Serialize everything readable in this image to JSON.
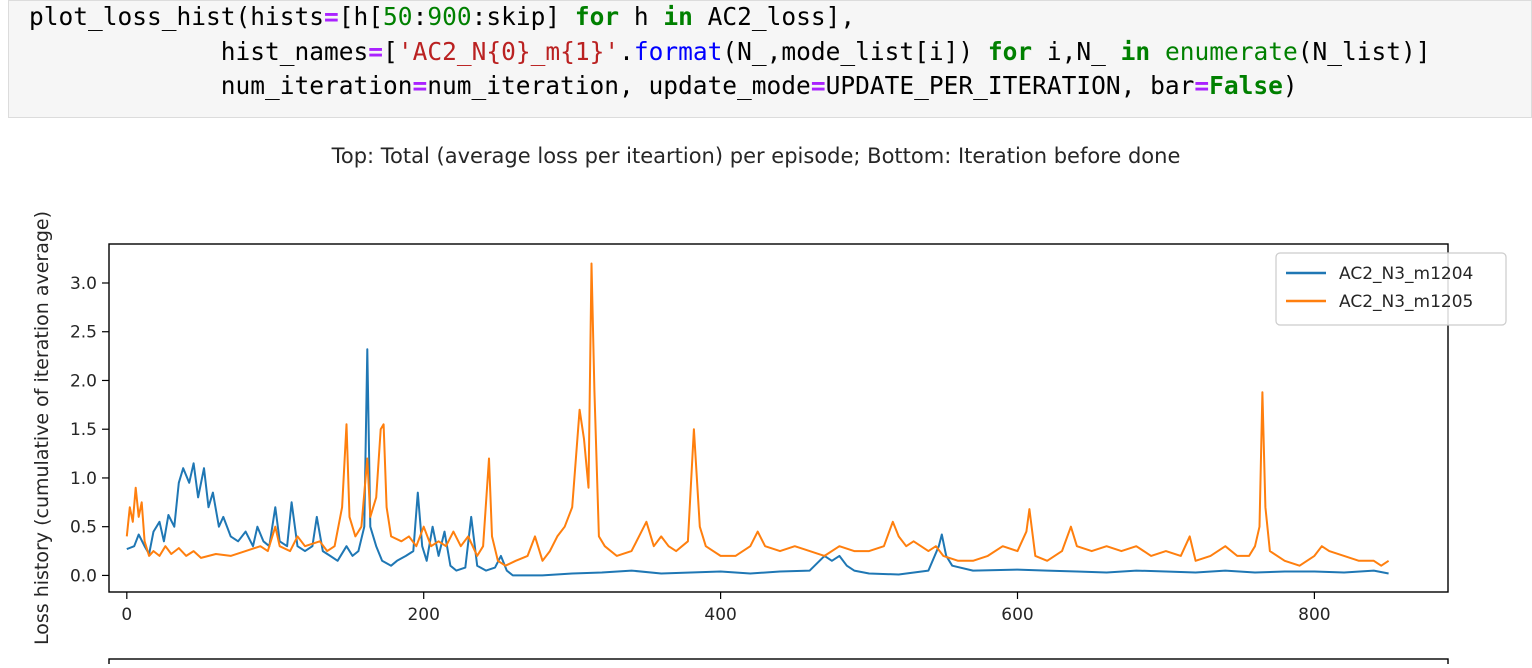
{
  "code_cell": {
    "line1": {
      "p1": "plot_loss_hist(hists",
      "eq": "=",
      "p2": "[h[",
      "n50": "50",
      "colon1": ":",
      "n900": "900",
      "p3": ":skip] ",
      "kw_for": "for",
      "p4": " h ",
      "kw_in": "in",
      "p5": " AC2_loss],"
    },
    "line2": {
      "indent": "             ",
      "p1": "hist_names",
      "eq": "=",
      "p2": "[",
      "str": "'AC2_N{0}_m{1}'",
      "p3": ".",
      "fn": "format",
      "p4": "(N_,mode_list[i]) ",
      "kw_for": "for",
      "p5": " i,N_ ",
      "kw_in": "in",
      "p6": " ",
      "fn2": "enumerate",
      "p7": "(N_list)]"
    },
    "line3": {
      "indent": "             ",
      "p1": "num_iteration",
      "eq": "=",
      "p2": "num_iteration, update_mode",
      "eq2": "=",
      "p3": "UPDATE_PER_ITERATION, bar",
      "eq3": "=",
      "kw_false": "False",
      "p4": ")"
    }
  },
  "chart_data": {
    "type": "line",
    "title": "Top: Total (average loss per iteartion) per episode; Bottom: Iteration before done",
    "xlabel": "",
    "ylabel": "Loss history (cumulative of iteration average)",
    "xlim": [
      -12,
      890
    ],
    "ylim": [
      -0.17,
      3.4
    ],
    "xticks": [
      0,
      200,
      400,
      600,
      800
    ],
    "xtick_labels": [
      "0",
      "200",
      "400",
      "600",
      "800"
    ],
    "yticks": [
      0.0,
      0.5,
      1.0,
      1.5,
      2.0,
      2.5,
      3.0
    ],
    "ytick_labels": [
      "0.0",
      "0.5",
      "1.0",
      "1.5",
      "2.0",
      "2.5",
      "3.0"
    ],
    "legend_position": "top-right",
    "series": [
      {
        "name": "AC2_N3_m1204",
        "color": "#1f77b4",
        "points": [
          [
            0,
            0.27
          ],
          [
            5,
            0.3
          ],
          [
            8,
            0.42
          ],
          [
            12,
            0.3
          ],
          [
            15,
            0.22
          ],
          [
            18,
            0.45
          ],
          [
            22,
            0.55
          ],
          [
            25,
            0.35
          ],
          [
            28,
            0.62
          ],
          [
            32,
            0.5
          ],
          [
            35,
            0.95
          ],
          [
            38,
            1.1
          ],
          [
            42,
            0.95
          ],
          [
            45,
            1.15
          ],
          [
            48,
            0.8
          ],
          [
            52,
            1.1
          ],
          [
            55,
            0.7
          ],
          [
            58,
            0.85
          ],
          [
            62,
            0.5
          ],
          [
            65,
            0.6
          ],
          [
            70,
            0.4
          ],
          [
            75,
            0.35
          ],
          [
            80,
            0.45
          ],
          [
            85,
            0.3
          ],
          [
            88,
            0.5
          ],
          [
            92,
            0.35
          ],
          [
            96,
            0.3
          ],
          [
            100,
            0.7
          ],
          [
            103,
            0.35
          ],
          [
            108,
            0.3
          ],
          [
            111,
            0.75
          ],
          [
            115,
            0.3
          ],
          [
            120,
            0.25
          ],
          [
            125,
            0.3
          ],
          [
            128,
            0.6
          ],
          [
            132,
            0.25
          ],
          [
            137,
            0.2
          ],
          [
            142,
            0.15
          ],
          [
            148,
            0.3
          ],
          [
            152,
            0.2
          ],
          [
            156,
            0.25
          ],
          [
            160,
            0.5
          ],
          [
            162,
            2.32
          ],
          [
            164,
            0.5
          ],
          [
            168,
            0.3
          ],
          [
            172,
            0.15
          ],
          [
            178,
            0.1
          ],
          [
            182,
            0.15
          ],
          [
            188,
            0.2
          ],
          [
            193,
            0.25
          ],
          [
            196,
            0.85
          ],
          [
            199,
            0.3
          ],
          [
            202,
            0.15
          ],
          [
            206,
            0.5
          ],
          [
            210,
            0.2
          ],
          [
            214,
            0.45
          ],
          [
            218,
            0.1
          ],
          [
            222,
            0.05
          ],
          [
            228,
            0.08
          ],
          [
            232,
            0.6
          ],
          [
            236,
            0.1
          ],
          [
            242,
            0.05
          ],
          [
            248,
            0.08
          ],
          [
            252,
            0.2
          ],
          [
            256,
            0.05
          ],
          [
            260,
            0.0
          ],
          [
            280,
            0.0
          ],
          [
            300,
            0.02
          ],
          [
            320,
            0.03
          ],
          [
            340,
            0.05
          ],
          [
            360,
            0.02
          ],
          [
            380,
            0.03
          ],
          [
            400,
            0.04
          ],
          [
            420,
            0.02
          ],
          [
            440,
            0.04
          ],
          [
            460,
            0.05
          ],
          [
            470,
            0.2
          ],
          [
            475,
            0.15
          ],
          [
            480,
            0.2
          ],
          [
            485,
            0.1
          ],
          [
            490,
            0.05
          ],
          [
            500,
            0.02
          ],
          [
            520,
            0.01
          ],
          [
            540,
            0.05
          ],
          [
            547,
            0.3
          ],
          [
            549,
            0.42
          ],
          [
            552,
            0.2
          ],
          [
            556,
            0.1
          ],
          [
            570,
            0.05
          ],
          [
            600,
            0.06
          ],
          [
            620,
            0.05
          ],
          [
            640,
            0.04
          ],
          [
            660,
            0.03
          ],
          [
            680,
            0.05
          ],
          [
            700,
            0.04
          ],
          [
            720,
            0.03
          ],
          [
            740,
            0.05
          ],
          [
            760,
            0.03
          ],
          [
            780,
            0.04
          ],
          [
            800,
            0.04
          ],
          [
            820,
            0.03
          ],
          [
            840,
            0.05
          ],
          [
            850,
            0.02
          ]
        ]
      },
      {
        "name": "AC2_N3_m1205",
        "color": "#ff7f0e",
        "points": [
          [
            0,
            0.4
          ],
          [
            2,
            0.7
          ],
          [
            4,
            0.55
          ],
          [
            6,
            0.9
          ],
          [
            8,
            0.6
          ],
          [
            10,
            0.75
          ],
          [
            12,
            0.35
          ],
          [
            15,
            0.2
          ],
          [
            18,
            0.25
          ],
          [
            22,
            0.2
          ],
          [
            26,
            0.3
          ],
          [
            30,
            0.22
          ],
          [
            35,
            0.28
          ],
          [
            40,
            0.2
          ],
          [
            45,
            0.25
          ],
          [
            50,
            0.18
          ],
          [
            60,
            0.22
          ],
          [
            70,
            0.2
          ],
          [
            80,
            0.25
          ],
          [
            90,
            0.3
          ],
          [
            95,
            0.25
          ],
          [
            100,
            0.5
          ],
          [
            103,
            0.3
          ],
          [
            110,
            0.25
          ],
          [
            115,
            0.4
          ],
          [
            120,
            0.3
          ],
          [
            130,
            0.35
          ],
          [
            135,
            0.25
          ],
          [
            140,
            0.3
          ],
          [
            145,
            0.7
          ],
          [
            148,
            1.55
          ],
          [
            150,
            0.6
          ],
          [
            154,
            0.4
          ],
          [
            158,
            0.5
          ],
          [
            162,
            1.2
          ],
          [
            164,
            0.6
          ],
          [
            168,
            0.8
          ],
          [
            171,
            1.5
          ],
          [
            173,
            1.55
          ],
          [
            175,
            0.7
          ],
          [
            178,
            0.4
          ],
          [
            185,
            0.35
          ],
          [
            190,
            0.4
          ],
          [
            195,
            0.3
          ],
          [
            200,
            0.5
          ],
          [
            205,
            0.3
          ],
          [
            210,
            0.35
          ],
          [
            215,
            0.3
          ],
          [
            220,
            0.45
          ],
          [
            225,
            0.3
          ],
          [
            230,
            0.4
          ],
          [
            236,
            0.2
          ],
          [
            240,
            0.3
          ],
          [
            244,
            1.2
          ],
          [
            246,
            0.4
          ],
          [
            250,
            0.15
          ],
          [
            255,
            0.1
          ],
          [
            262,
            0.15
          ],
          [
            270,
            0.2
          ],
          [
            275,
            0.4
          ],
          [
            280,
            0.15
          ],
          [
            285,
            0.25
          ],
          [
            290,
            0.4
          ],
          [
            295,
            0.5
          ],
          [
            300,
            0.7
          ],
          [
            305,
            1.7
          ],
          [
            308,
            1.4
          ],
          [
            311,
            0.9
          ],
          [
            313,
            3.2
          ],
          [
            315,
            1.9
          ],
          [
            318,
            0.4
          ],
          [
            322,
            0.3
          ],
          [
            330,
            0.2
          ],
          [
            340,
            0.25
          ],
          [
            345,
            0.4
          ],
          [
            350,
            0.55
          ],
          [
            355,
            0.3
          ],
          [
            360,
            0.4
          ],
          [
            365,
            0.3
          ],
          [
            370,
            0.25
          ],
          [
            378,
            0.35
          ],
          [
            382,
            1.5
          ],
          [
            386,
            0.5
          ],
          [
            390,
            0.3
          ],
          [
            395,
            0.25
          ],
          [
            400,
            0.2
          ],
          [
            410,
            0.2
          ],
          [
            420,
            0.3
          ],
          [
            425,
            0.45
          ],
          [
            430,
            0.3
          ],
          [
            440,
            0.25
          ],
          [
            450,
            0.3
          ],
          [
            460,
            0.25
          ],
          [
            470,
            0.2
          ],
          [
            480,
            0.3
          ],
          [
            490,
            0.25
          ],
          [
            500,
            0.25
          ],
          [
            510,
            0.3
          ],
          [
            516,
            0.55
          ],
          [
            520,
            0.4
          ],
          [
            525,
            0.3
          ],
          [
            530,
            0.35
          ],
          [
            540,
            0.25
          ],
          [
            545,
            0.3
          ],
          [
            550,
            0.2
          ],
          [
            560,
            0.15
          ],
          [
            570,
            0.15
          ],
          [
            580,
            0.2
          ],
          [
            590,
            0.3
          ],
          [
            600,
            0.25
          ],
          [
            606,
            0.45
          ],
          [
            608,
            0.68
          ],
          [
            612,
            0.2
          ],
          [
            620,
            0.15
          ],
          [
            630,
            0.25
          ],
          [
            636,
            0.5
          ],
          [
            640,
            0.3
          ],
          [
            650,
            0.25
          ],
          [
            660,
            0.3
          ],
          [
            670,
            0.25
          ],
          [
            680,
            0.3
          ],
          [
            690,
            0.2
          ],
          [
            700,
            0.25
          ],
          [
            710,
            0.2
          ],
          [
            716,
            0.4
          ],
          [
            720,
            0.15
          ],
          [
            730,
            0.2
          ],
          [
            740,
            0.3
          ],
          [
            748,
            0.2
          ],
          [
            756,
            0.2
          ],
          [
            760,
            0.3
          ],
          [
            763,
            0.5
          ],
          [
            765,
            1.88
          ],
          [
            767,
            0.7
          ],
          [
            770,
            0.25
          ],
          [
            780,
            0.15
          ],
          [
            790,
            0.1
          ],
          [
            800,
            0.2
          ],
          [
            805,
            0.3
          ],
          [
            810,
            0.25
          ],
          [
            820,
            0.2
          ],
          [
            830,
            0.15
          ],
          [
            840,
            0.15
          ],
          [
            845,
            0.1
          ],
          [
            850,
            0.15
          ]
        ]
      }
    ]
  }
}
